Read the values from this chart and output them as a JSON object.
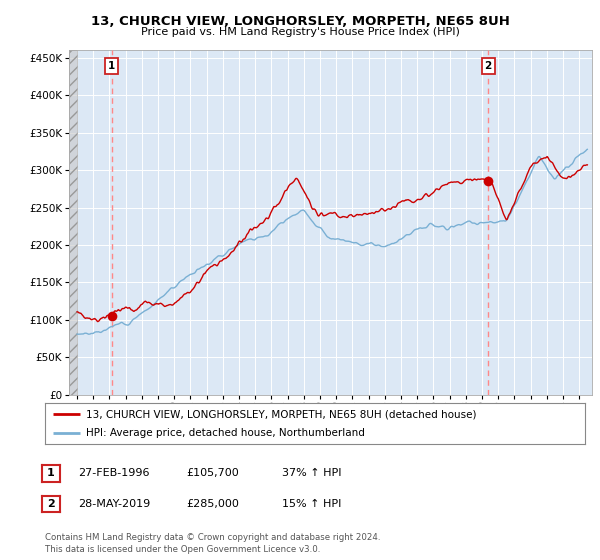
{
  "title": "13, CHURCH VIEW, LONGHORSLEY, MORPETH, NE65 8UH",
  "subtitle": "Price paid vs. HM Land Registry's House Price Index (HPI)",
  "legend_line1": "13, CHURCH VIEW, LONGHORSLEY, MORPETH, NE65 8UH (detached house)",
  "legend_line2": "HPI: Average price, detached house, Northumberland",
  "annotation1_date": "27-FEB-1996",
  "annotation1_price": "£105,700",
  "annotation1_hpi": "37% ↑ HPI",
  "annotation2_date": "28-MAY-2019",
  "annotation2_price": "£285,000",
  "annotation2_hpi": "15% ↑ HPI",
  "footnote": "Contains HM Land Registry data © Crown copyright and database right 2024.\nThis data is licensed under the Open Government Licence v3.0.",
  "sale1_year": 1996.15,
  "sale1_price": 105700,
  "sale2_year": 2019.38,
  "sale2_price": 285000,
  "red_line_color": "#cc0000",
  "blue_line_color": "#7ab0d4",
  "dot_color": "#cc0000",
  "vline_color": "#ff8888",
  "background_plot": "#dce8f5",
  "ylim_top": 460000,
  "xlim_start": 1993.5,
  "xlim_end": 2025.8,
  "yticks": [
    0,
    50000,
    100000,
    150000,
    200000,
    250000,
    300000,
    350000,
    400000,
    450000
  ]
}
